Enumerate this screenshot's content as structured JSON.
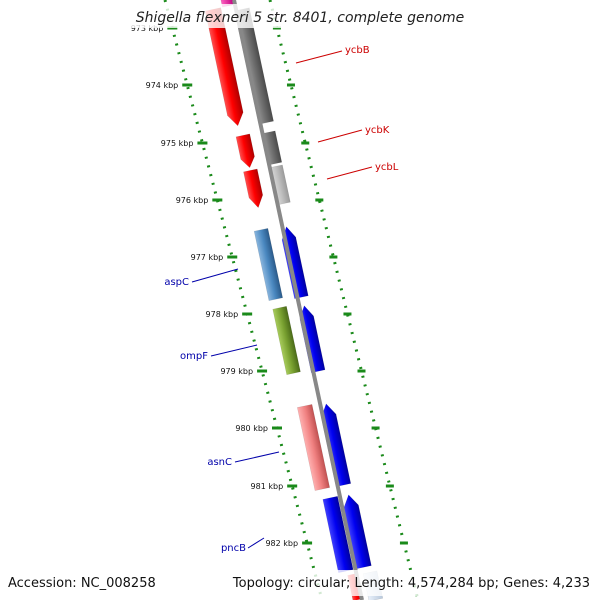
{
  "title": "Shigella flexneri 5 str. 8401, complete genome",
  "footer": {
    "accession": "Accession: NC_008258",
    "summary": "Topology: circular; Length: 4,574,284 bp; Genes: 4,233"
  },
  "colors": {
    "backbone": "#888888",
    "tick": "#1a8a1a",
    "label_red": "#cc0000",
    "label_blue": "#0000aa"
  },
  "ticks": [
    {
      "label": "973 kbp"
    },
    {
      "label": "974 kbp"
    },
    {
      "label": "975 kbp"
    },
    {
      "label": "976 kbp"
    },
    {
      "label": "977 kbp"
    },
    {
      "label": "978 kbp"
    },
    {
      "label": "979 kbp"
    },
    {
      "label": "980 kbp"
    },
    {
      "label": "981 kbp"
    },
    {
      "label": "982 kbp"
    }
  ],
  "genes": [
    {
      "name": "ycbB",
      "side": "right",
      "color": "#cc0000"
    },
    {
      "name": "ycbK",
      "side": "right",
      "color": "#cc0000"
    },
    {
      "name": "ycbL",
      "side": "right",
      "color": "#cc0000"
    },
    {
      "name": "aspC",
      "side": "left",
      "color": "#0000aa"
    },
    {
      "name": "ompF",
      "side": "left",
      "color": "#0000aa"
    },
    {
      "name": "asnC",
      "side": "left",
      "color": "#0000aa"
    },
    {
      "name": "pncB",
      "side": "left",
      "color": "#0000aa"
    }
  ]
}
